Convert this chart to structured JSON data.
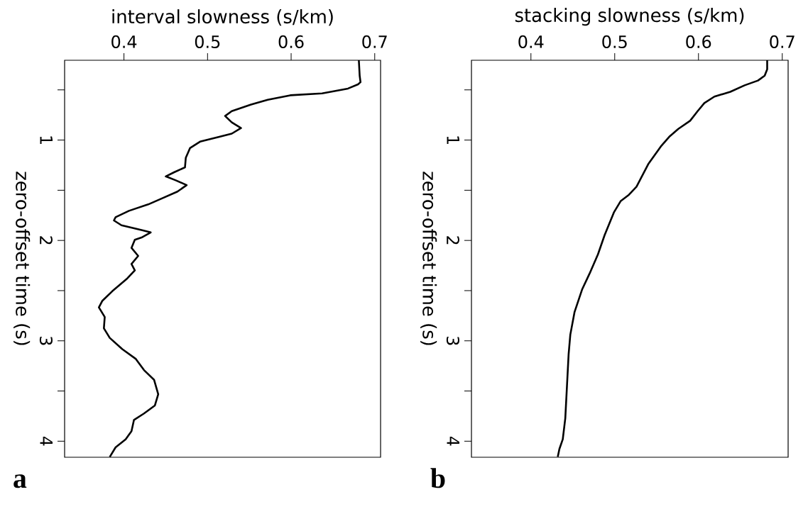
{
  "chart_data": [
    {
      "type": "line",
      "xlabel": "interval slowness (s/km)",
      "ylabel": "zero-offset time (s)",
      "xlim": [
        0.329,
        0.707
      ],
      "ylim": [
        4.16,
        0.205
      ],
      "xticks": [
        0.4,
        0.5,
        0.6,
        0.7
      ],
      "yticks": [
        {
          "value": 0.5,
          "label": null
        },
        1,
        {
          "value": 1.5,
          "label": null
        },
        2,
        {
          "value": 2.5,
          "label": null
        },
        3,
        {
          "value": 3.5,
          "label": null
        },
        4
      ],
      "annotations": [
        "a"
      ],
      "series": [
        {
          "color": "#000000",
          "x": [
            0.681,
            0.682,
            0.683,
            0.68,
            0.668,
            0.637,
            0.599,
            0.572,
            0.552,
            0.529,
            0.521,
            0.529,
            0.54,
            0.529,
            0.514,
            0.491,
            0.479,
            0.474,
            0.473,
            0.46,
            0.45,
            0.462,
            0.475,
            0.464,
            0.444,
            0.429,
            0.406,
            0.39,
            0.388,
            0.397,
            0.421,
            0.432,
            0.421,
            0.413,
            0.409,
            0.417,
            0.409,
            0.413,
            0.404,
            0.386,
            0.374,
            0.37,
            0.377,
            0.376,
            0.383,
            0.398,
            0.414,
            0.424,
            0.436,
            0.441,
            0.437,
            0.424,
            0.412,
            0.409,
            0.402,
            0.39,
            0.383
          ],
          "values": [
            0.205,
            0.359,
            0.423,
            0.445,
            0.487,
            0.535,
            0.554,
            0.599,
            0.647,
            0.712,
            0.76,
            0.824,
            0.881,
            0.936,
            0.968,
            1.016,
            1.08,
            1.176,
            1.272,
            1.321,
            1.362,
            1.401,
            1.449,
            1.513,
            1.587,
            1.641,
            1.705,
            1.769,
            1.801,
            1.849,
            1.897,
            1.92,
            1.971,
            1.994,
            2.074,
            2.154,
            2.234,
            2.298,
            2.378,
            2.506,
            2.603,
            2.667,
            2.763,
            2.875,
            2.971,
            3.083,
            3.179,
            3.292,
            3.388,
            3.532,
            3.644,
            3.724,
            3.788,
            3.901,
            3.981,
            4.061,
            4.157
          ]
        }
      ]
    },
    {
      "type": "line",
      "xlabel": "stacking slowness (s/km)",
      "ylabel": "zero-offset time (s)",
      "xlim": [
        0.329,
        0.707
      ],
      "ylim": [
        4.16,
        0.205
      ],
      "xticks": [
        0.4,
        0.5,
        0.6,
        0.7
      ],
      "yticks": [
        {
          "value": 0.5,
          "label": null
        },
        1,
        {
          "value": 1.5,
          "label": null
        },
        2,
        {
          "value": 2.5,
          "label": null
        },
        3,
        {
          "value": 3.5,
          "label": null
        },
        4
      ],
      "annotations": [
        "b"
      ],
      "series": [
        {
          "color": "#000000",
          "x": [
            0.682,
            0.682,
            0.679,
            0.671,
            0.655,
            0.638,
            0.619,
            0.607,
            0.599,
            0.59,
            0.576,
            0.565,
            0.555,
            0.54,
            0.526,
            0.517,
            0.507,
            0.499,
            0.488,
            0.48,
            0.47,
            0.461,
            0.452,
            0.447,
            0.445,
            0.443,
            0.441,
            0.438,
            0.436,
            0.434,
            0.432
          ],
          "values": [
            0.205,
            0.295,
            0.359,
            0.407,
            0.455,
            0.519,
            0.567,
            0.631,
            0.712,
            0.808,
            0.888,
            0.968,
            1.064,
            1.24,
            1.465,
            1.545,
            1.609,
            1.721,
            1.946,
            2.138,
            2.33,
            2.49,
            2.715,
            2.939,
            3.131,
            3.452,
            3.772,
            3.981,
            4.029,
            4.077,
            4.157
          ]
        }
      ]
    }
  ]
}
